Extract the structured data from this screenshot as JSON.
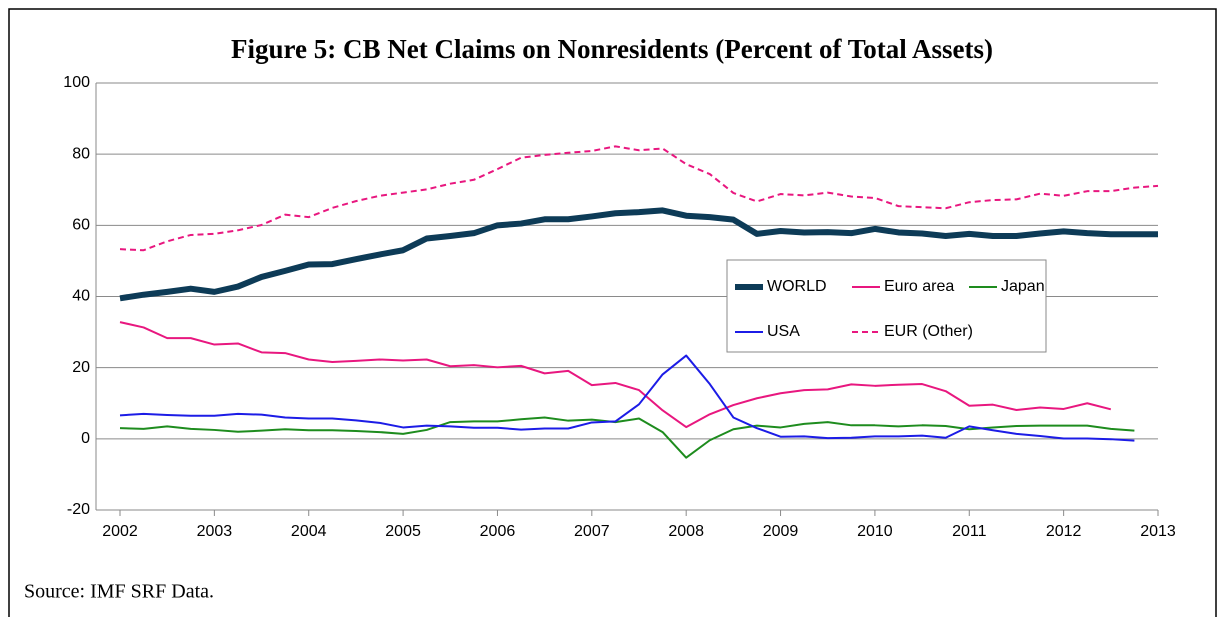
{
  "chart_data": {
    "type": "line",
    "title": "Figure 5: CB Net Claims on Nonresidents (Percent of Total Assets)",
    "source": "Source: IMF SRF Data.",
    "x": [
      2002,
      2002.25,
      2002.5,
      2002.75,
      2003,
      2003.25,
      2003.5,
      2003.75,
      2004,
      2004.25,
      2004.5,
      2004.75,
      2005,
      2005.25,
      2005.5,
      2005.75,
      2006,
      2006.25,
      2006.5,
      2006.75,
      2007,
      2007.25,
      2007.5,
      2007.75,
      2008,
      2008.25,
      2008.5,
      2008.75,
      2009,
      2009.25,
      2009.5,
      2009.75,
      2010,
      2010.25,
      2010.5,
      2010.75,
      2011,
      2011.25,
      2011.5,
      2011.75,
      2012,
      2012.25,
      2012.5,
      2012.75,
      2013
    ],
    "xlim": [
      2002,
      2013
    ],
    "xticks": [
      2002,
      2003,
      2004,
      2005,
      2006,
      2007,
      2008,
      2009,
      2010,
      2011,
      2012,
      2013
    ],
    "ylim": [
      -20,
      100
    ],
    "yticks": [
      -20,
      0,
      20,
      40,
      60,
      80,
      100
    ],
    "grid": true,
    "series": [
      {
        "name": "WORLD",
        "color": "#0d3b57",
        "values": [
          39.5,
          40.5,
          41.3,
          42.2,
          41.3,
          42.8,
          45.5,
          47.2,
          49,
          49.1,
          50.5,
          51.8,
          53,
          56.3,
          57,
          57.8,
          60,
          60.5,
          61.7,
          61.7,
          62.5,
          63.4,
          63.7,
          64.2,
          62.7,
          62.3,
          61.6,
          57.6,
          58.4,
          58,
          58.1,
          57.8,
          59,
          58,
          57.7,
          57,
          57.6,
          57,
          57,
          57.7,
          58.3,
          57.8,
          57.5,
          57.5,
          57.5
        ]
      },
      {
        "name": "Euro area",
        "color": "#e8177f",
        "values": [
          32.8,
          31.3,
          28.3,
          28.3,
          26.5,
          26.8,
          24.3,
          24.1,
          22.3,
          21.6,
          21.9,
          22.3,
          22,
          22.3,
          20.4,
          20.7,
          20.1,
          20.5,
          18.4,
          19.1,
          15.1,
          15.7,
          13.7,
          8,
          3.3,
          6.9,
          9.5,
          11.4,
          12.8,
          13.7,
          13.9,
          15.3,
          14.9,
          15.2,
          15.4,
          13.4,
          9.3,
          9.6,
          8.1,
          8.8,
          8.4,
          10,
          8.3,
          null,
          null
        ]
      },
      {
        "name": "Japan",
        "color": "#1e8c1e",
        "values": [
          3,
          2.8,
          3.5,
          2.8,
          2.5,
          2,
          2.3,
          2.7,
          2.4,
          2.4,
          2.2,
          1.9,
          1.4,
          2.5,
          4.7,
          4.9,
          4.9,
          5.5,
          6,
          5.1,
          5.4,
          4.7,
          5.7,
          1.9,
          -5.3,
          -0.4,
          2.7,
          3.7,
          3.2,
          4.2,
          4.7,
          3.8,
          3.8,
          3.5,
          3.8,
          3.6,
          2.7,
          3.2,
          3.6,
          3.7,
          3.7,
          3.7,
          2.8,
          2.3,
          null
        ]
      },
      {
        "name": "USA",
        "color": "#1c1ce6",
        "values": [
          6.6,
          7,
          6.7,
          6.5,
          6.5,
          7,
          6.8,
          6,
          5.7,
          5.7,
          5.2,
          4.5,
          3.2,
          3.7,
          3.5,
          3.1,
          3.1,
          2.6,
          2.9,
          2.9,
          4.6,
          4.9,
          9.7,
          18.1,
          23.4,
          15.4,
          6,
          3,
          0.6,
          0.7,
          0.2,
          0.3,
          0.7,
          0.7,
          0.9,
          0.3,
          3.5,
          2.4,
          1.4,
          0.8,
          0.1,
          0.1,
          -0.1,
          -0.5,
          null
        ]
      },
      {
        "name": "EUR (Other)",
        "color": "#e8177f",
        "dashed": true,
        "values": [
          53.3,
          53,
          55.5,
          57.3,
          57.6,
          58.6,
          60.1,
          63,
          62.3,
          64.9,
          66.8,
          68.3,
          69.2,
          70.1,
          71.7,
          72.8,
          75.8,
          79,
          79.8,
          80.4,
          80.9,
          82.2,
          81.1,
          81.6,
          77.2,
          74.4,
          69.1,
          66.7,
          68.8,
          68.4,
          69.2,
          68.1,
          67.7,
          65.4,
          65.1,
          64.8,
          66.5,
          67.1,
          67.3,
          68.9,
          68.3,
          69.6,
          69.6,
          70.6,
          71.1
        ]
      }
    ]
  }
}
